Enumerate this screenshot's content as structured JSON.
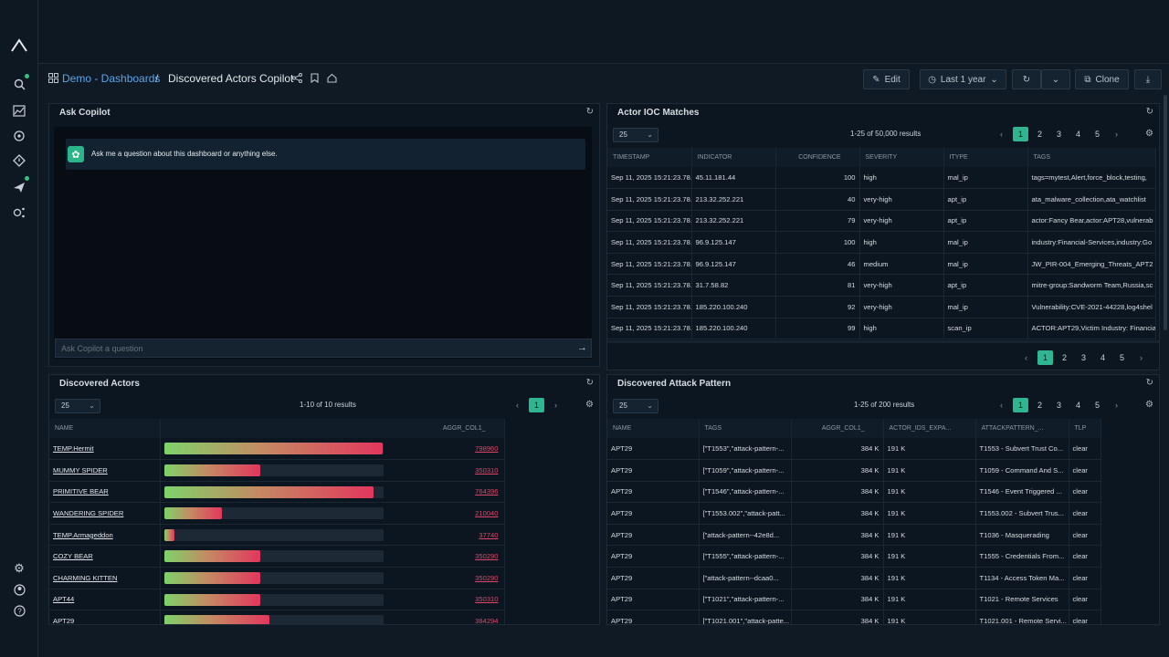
{
  "breadcrumb": {
    "parent": "Demo - Dashboards",
    "separator": "/",
    "title": "Discovered Actors Copilot"
  },
  "toolbar": {
    "edit_label": "Edit",
    "time_label": "Last 1 year",
    "clone_label": "Clone"
  },
  "copilot": {
    "title": "Ask Copilot",
    "message": "Ask me a question about this dashboard or anything else.",
    "input_placeholder": "Ask Copilot a question"
  },
  "ioc": {
    "title": "Actor IOC Matches",
    "page_size": "25",
    "results": "1-25 of 50,000 results",
    "pages": [
      "1",
      "2",
      "3",
      "4",
      "5"
    ],
    "columns": [
      "TIMESTAMP",
      "INDICATOR",
      "CONFIDENCE",
      "SEVERITY",
      "ITYPE",
      "TAGS"
    ],
    "rows": [
      [
        "Sep 11, 2025 15:21:23.78...",
        "45.11.181.44",
        "100",
        "high",
        "mal_ip",
        "tags=mytest,Alert,force_block,testing,"
      ],
      [
        "Sep 11, 2025 15:21:23.78...",
        "213.32.252.221",
        "40",
        "very-high",
        "apt_ip",
        "ata_malware_collection,ata_watchlist"
      ],
      [
        "Sep 11, 2025 15:21:23.78...",
        "213.32.252.221",
        "79",
        "very-high",
        "apt_ip",
        "actor:Fancy Bear,actor:APT28,vulnerab"
      ],
      [
        "Sep 11, 2025 15:21:23.78...",
        "96.9.125.147",
        "100",
        "high",
        "mal_ip",
        "industry:Financial-Services,industry:Go"
      ],
      [
        "Sep 11, 2025 15:21:23.78...",
        "96.9.125.147",
        "46",
        "medium",
        "mal_ip",
        "JW_PIR-004_Emerging_Threats_APT2"
      ],
      [
        "Sep 11, 2025 15:21:23.78...",
        "31.7.58.82",
        "81",
        "very-high",
        "apt_ip",
        "mitre-group:Sandworm Team,Russia,sc"
      ],
      [
        "Sep 11, 2025 15:21:23.78...",
        "185.220.100.240",
        "92",
        "very-high",
        "mal_ip",
        "Vulnerability:CVE-2021-44228,log4shel"
      ],
      [
        "Sep 11, 2025 15:21:23.78...",
        "185.220.100.240",
        "99",
        "high",
        "scan_ip",
        "ACTOR:APT29,Victim Industry: Financia"
      ]
    ]
  },
  "actors": {
    "title": "Discovered Actors",
    "page_size": "25",
    "results": "1-10 of 10 results",
    "pages": [
      "1"
    ],
    "columns": [
      "NAME",
      "AGGR_COL1_"
    ],
    "max_value": 800000,
    "rows": [
      {
        "name": "TEMP.Hermit",
        "value": 798960,
        "label": "798960"
      },
      {
        "name": "MUMMY SPIDER",
        "value": 350310,
        "label": "350310"
      },
      {
        "name": "PRIMITIVE BEAR",
        "value": 764396,
        "label": "764396"
      },
      {
        "name": "WANDERING SPIDER",
        "value": 210040,
        "label": "210040"
      },
      {
        "name": "TEMP.Armageddon",
        "value": 37740,
        "label": "37740"
      },
      {
        "name": "COZY BEAR",
        "value": 350290,
        "label": "350290"
      },
      {
        "name": "CHARMING KITTEN",
        "value": 350290,
        "label": "350290"
      },
      {
        "name": "APT44",
        "value": 350310,
        "label": "350310"
      },
      {
        "name": "APT29",
        "value": 384294,
        "label": "384294"
      }
    ]
  },
  "attack": {
    "title": "Discovered Attack Pattern",
    "page_size": "25",
    "results": "1-25 of 200 results",
    "pages": [
      "1",
      "2",
      "3",
      "4",
      "5"
    ],
    "columns": [
      "NAME",
      "TAGS",
      "AGGR_COL1_",
      "ACTOR_IDS_EXPA...",
      "ATTACKPATTERN_...",
      "TLP"
    ],
    "rows": [
      [
        "APT29",
        "[\"T1553\",\"attack-pattern-...",
        "384 K",
        "191 K",
        "T1553 - Subvert Trust Co...",
        "clear"
      ],
      [
        "APT29",
        "[\"T1059\",\"attack-pattern-...",
        "384 K",
        "191 K",
        "T1059 - Command And S...",
        "clear"
      ],
      [
        "APT29",
        "[\"T1546\",\"attack-pattern-...",
        "384 K",
        "191 K",
        "T1546 - Event Triggered ...",
        "clear"
      ],
      [
        "APT29",
        "[\"T1553.002\",\"attack-patt...",
        "384 K",
        "191 K",
        "T1553.002 - Subvert Trus...",
        "clear"
      ],
      [
        "APT29",
        "[\"attack-pattern--42e8d...",
        "384 K",
        "191 K",
        "T1036 - Masquerading",
        "clear"
      ],
      [
        "APT29",
        "[\"T1555\",\"attack-pattern-...",
        "384 K",
        "191 K",
        "T1555 - Credentials From...",
        "clear"
      ],
      [
        "APT29",
        "[\"attack-pattern--dcaa0...",
        "384 K",
        "191 K",
        "T1134 - Access Token Ma...",
        "clear"
      ],
      [
        "APT29",
        "[\"T1021\",\"attack-pattern-...",
        "384 K",
        "191 K",
        "T1021 - Remote Services",
        "clear"
      ],
      [
        "APT29",
        "[\"T1021.001\",\"attack-patte...",
        "384 K",
        "191 K",
        "T1021.001 - Remote Servi...",
        "clear"
      ]
    ]
  }
}
